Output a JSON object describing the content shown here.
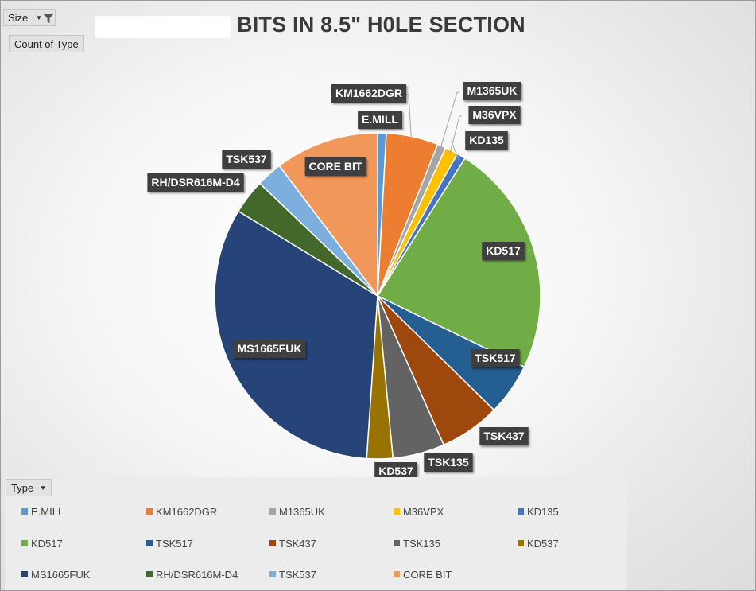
{
  "title": "BITS IN 8.5\" H0LE SECTION",
  "filter_button": {
    "label": "Size",
    "icon": "filter-funnel-icon"
  },
  "value_button": {
    "label": "Count of Type"
  },
  "legend_field_button": {
    "label": "Type"
  },
  "chart_data": {
    "type": "pie",
    "title": "BITS IN 8.5\" H0LE SECTION",
    "legend_position": "bottom",
    "categories": [
      "E.MILL",
      "KM1662DGR",
      "M1365UK",
      "M36VPX",
      "KD135",
      "KD517",
      "TSK517",
      "TSK437",
      "TSK135",
      "KD537",
      "MS1665FUK",
      "RH/DSR616M-D4",
      "TSK537",
      "CORE BIT"
    ],
    "values": [
      1,
      6,
      1,
      1.5,
      1,
      27,
      6,
      7,
      6,
      3,
      38,
      4,
      3,
      12
    ],
    "colors": [
      "#5b9bd5",
      "#ed7d31",
      "#a5a5a5",
      "#ffc000",
      "#4472c4",
      "#70ad47",
      "#255e91",
      "#9e480e",
      "#636363",
      "#997300",
      "#264478",
      "#43682b",
      "#7cafdd",
      "#f1975a"
    ],
    "data_labels": [
      "E.MILL",
      "KM1662DGR",
      "M1365UK",
      "M36VPX",
      "KD135",
      "KD517",
      "TSK517",
      "TSK437",
      "TSK135",
      "KD537",
      "MS1665FUK",
      "RH/DSR616M-D4",
      "TSK537",
      "CORE BIT"
    ]
  }
}
